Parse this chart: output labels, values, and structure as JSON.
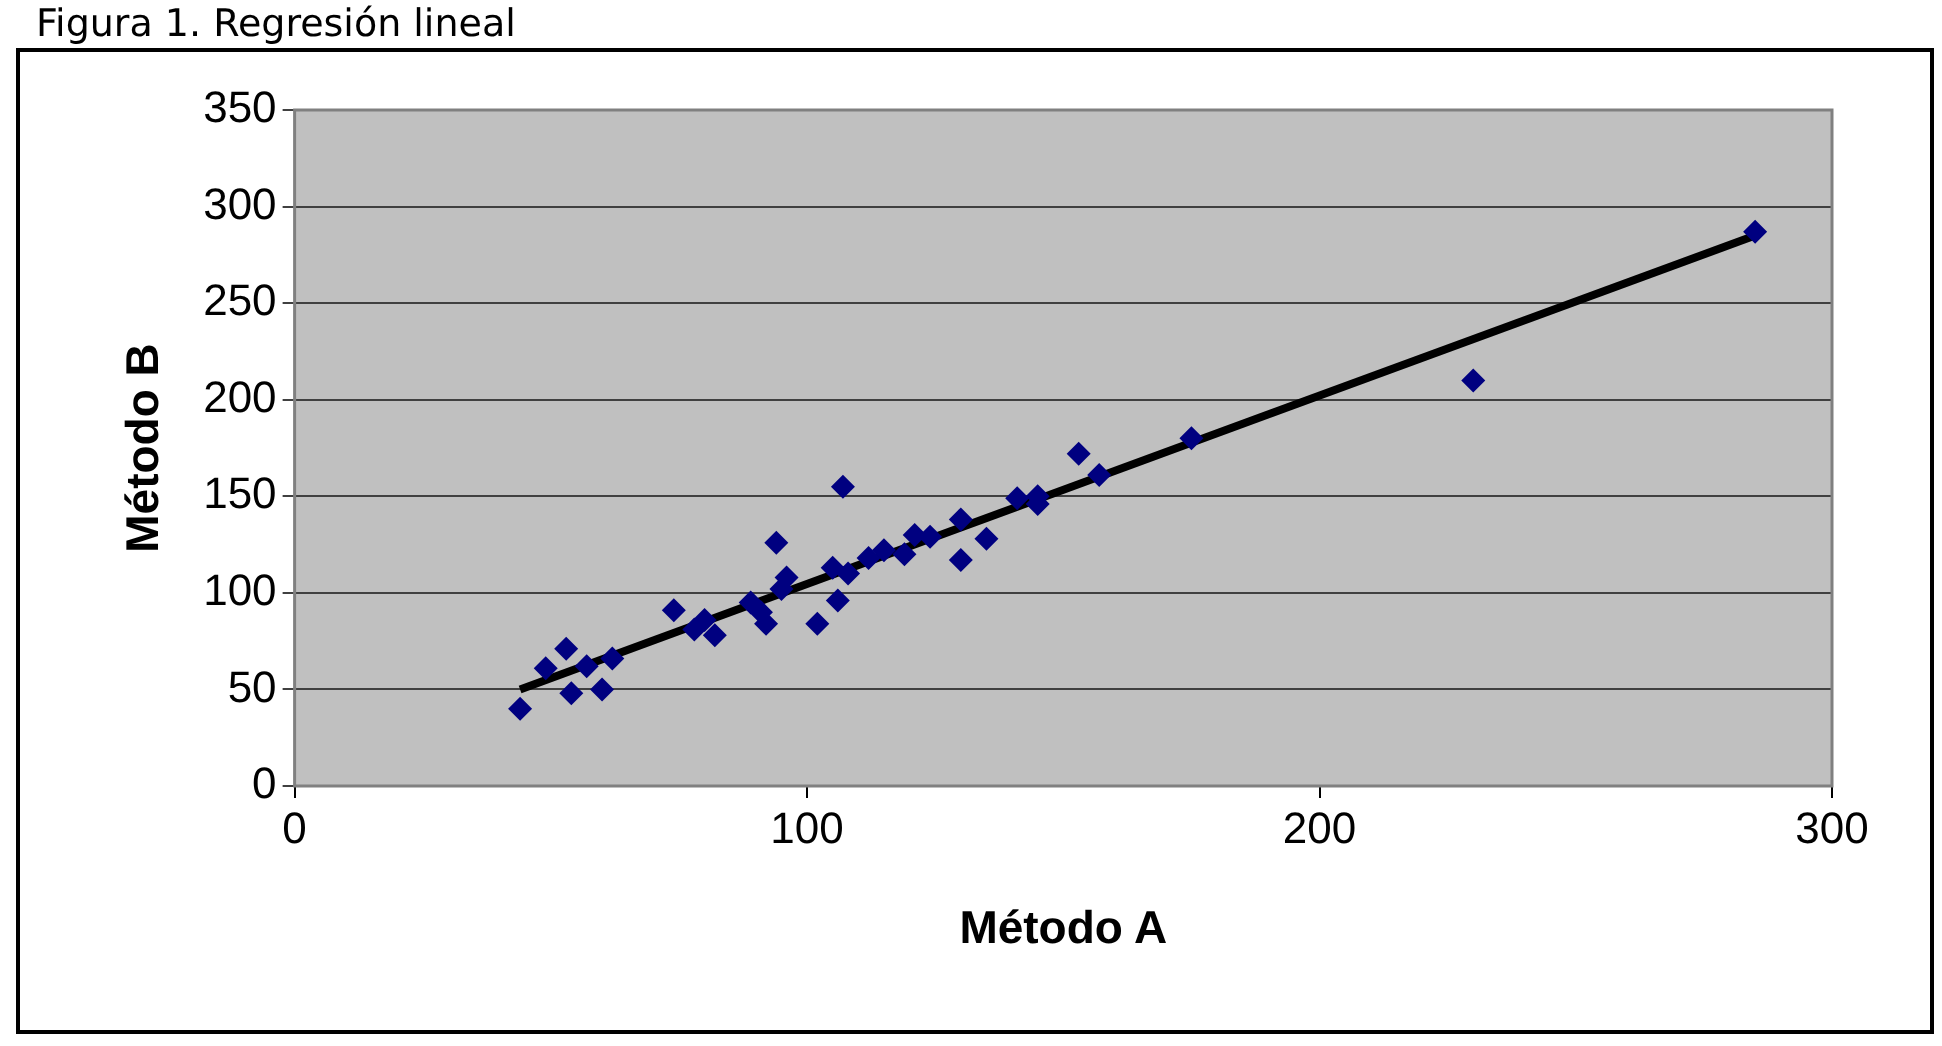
{
  "chart_data": {
    "type": "scatter",
    "title": "Figura 1. Regresión lineal",
    "xlabel": "Método A",
    "ylabel": "Método B",
    "xlim": [
      0,
      300
    ],
    "xticks": [
      0,
      100,
      200,
      300
    ],
    "ylim": [
      0,
      350
    ],
    "yticks": [
      0,
      50,
      100,
      150,
      200,
      250,
      300,
      350
    ],
    "grid": "y",
    "legend": false,
    "marker": "diamond",
    "series": [
      {
        "color": "#000080",
        "x": [
          44,
          49,
          53,
          54,
          57,
          60,
          62,
          74,
          78,
          80,
          82,
          89,
          91,
          92,
          94,
          95,
          96,
          102,
          105,
          106,
          107,
          108,
          112,
          115,
          119,
          121,
          124,
          130,
          130,
          135,
          141,
          145,
          145,
          153,
          157,
          175,
          230,
          285
        ],
        "values": [
          40,
          61,
          71,
          48,
          62,
          50,
          66,
          91,
          81,
          86,
          78,
          95,
          90,
          84,
          126,
          102,
          108,
          84,
          113,
          96,
          155,
          110,
          118,
          122,
          120,
          130,
          129,
          117,
          138,
          128,
          149,
          146,
          150,
          172,
          161,
          180,
          210,
          287
        ]
      },
      {
        "type": "line",
        "color": "#000000",
        "marker": "none",
        "x": [
          44,
          285
        ],
        "values": [
          50,
          285
        ]
      }
    ]
  }
}
